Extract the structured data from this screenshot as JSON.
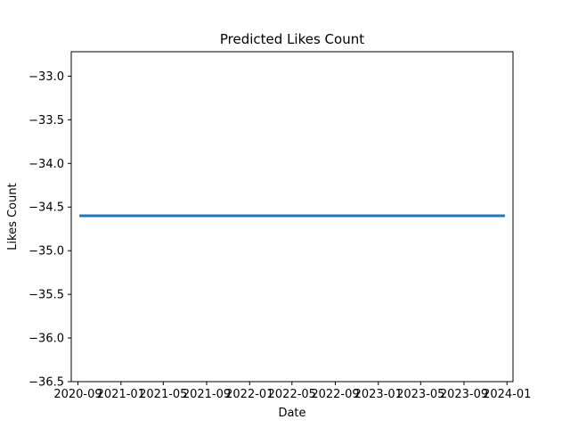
{
  "chart_data": {
    "type": "line",
    "title": "Predicted Likes Count",
    "xlabel": "Date",
    "ylabel": "Likes Count",
    "x_start": "2020-09-05",
    "x_end": "2023-12-26",
    "x_range": [
      "2020-08-13",
      "2024-01-18"
    ],
    "xticks": [
      "2020-09",
      "2021-01",
      "2021-05",
      "2021-09",
      "2022-01",
      "2022-05",
      "2022-09",
      "2023-01",
      "2023-05",
      "2023-09",
      "2024-01"
    ],
    "xtick_dates": [
      "2020-09-01",
      "2021-01-01",
      "2021-05-01",
      "2021-09-01",
      "2022-01-01",
      "2022-05-01",
      "2022-09-01",
      "2023-01-01",
      "2023-05-01",
      "2023-09-01",
      "2024-01-01"
    ],
    "series": [
      {
        "values": [
          -34.6,
          -34.6
        ],
        "color": "#1f77b4"
      }
    ],
    "ylim": [
      -36.5,
      -32.72
    ],
    "yticks": [
      -33.0,
      -33.5,
      -34.0,
      -34.5,
      -35.0,
      -35.5,
      -36.0,
      -36.5
    ],
    "ytick_labels": [
      "−33.0",
      "−33.5",
      "−34.0",
      "−34.5",
      "−35.0",
      "−35.5",
      "−36.0",
      "−36.5"
    ],
    "grid": false
  }
}
